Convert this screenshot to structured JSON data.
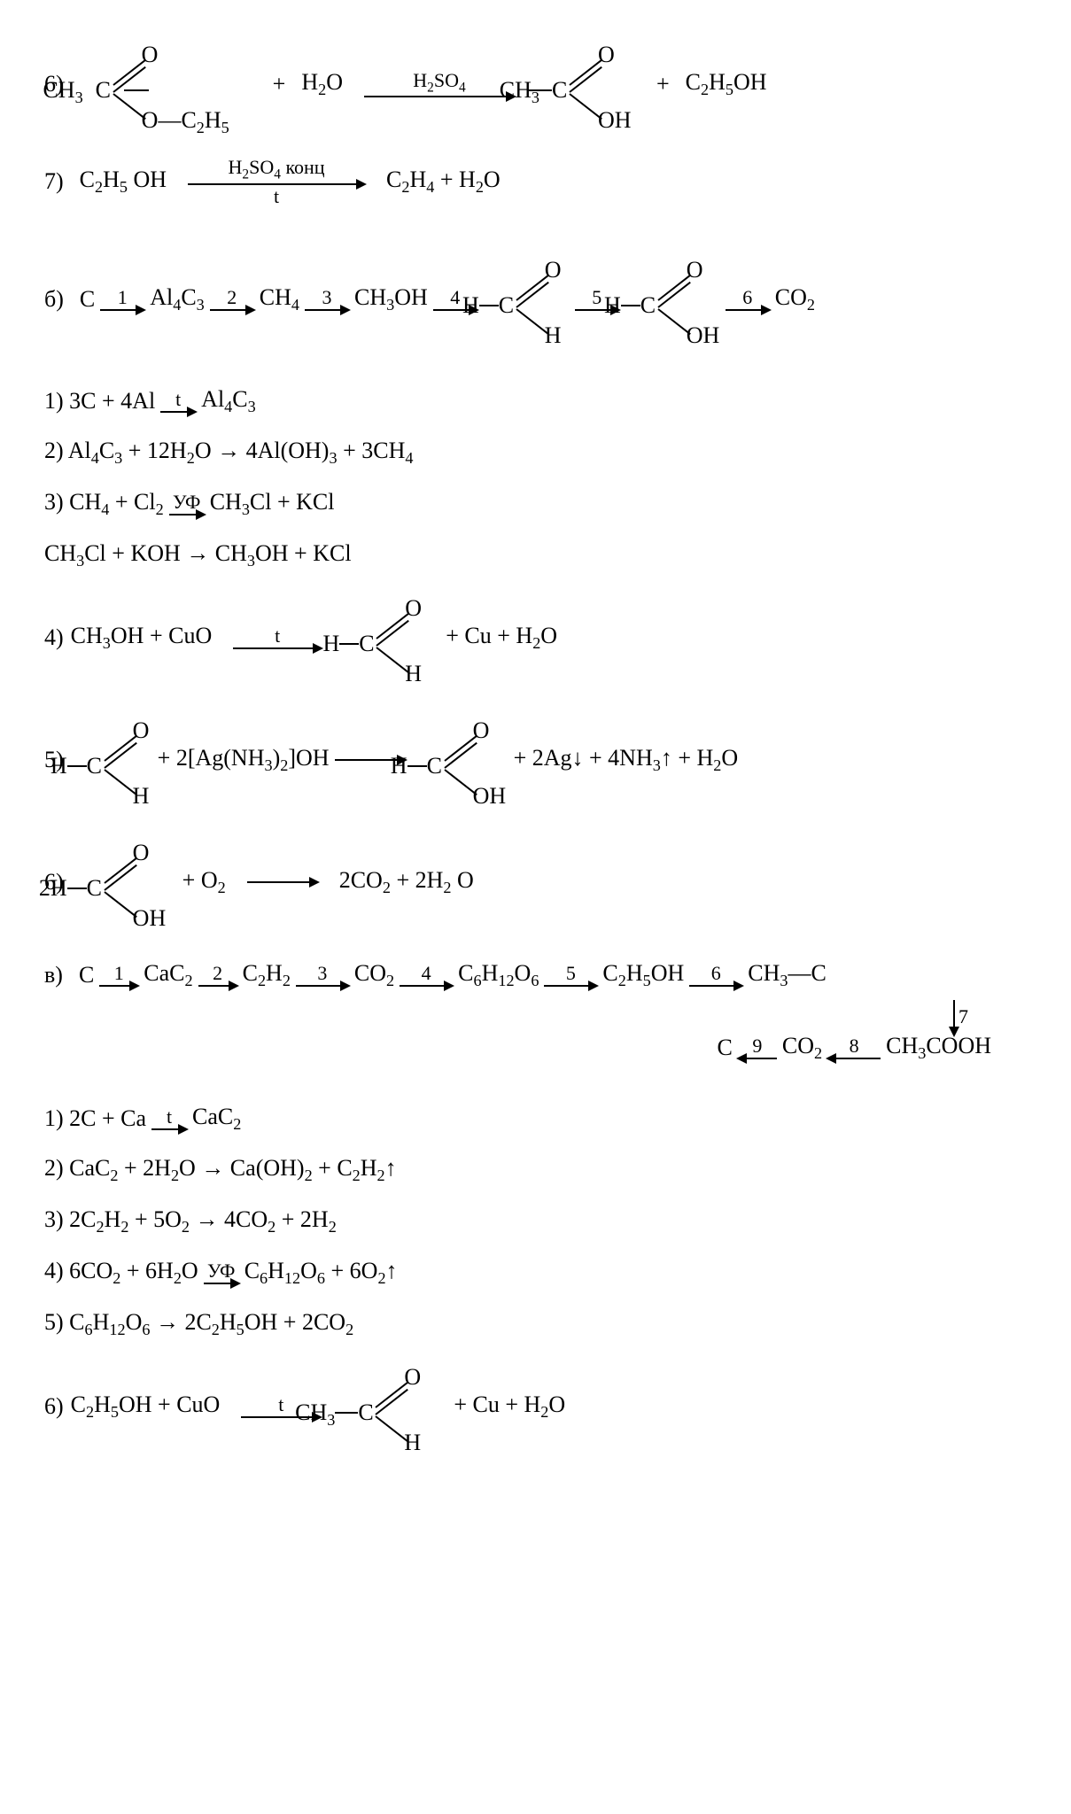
{
  "font_family": "Times New Roman",
  "colors": {
    "text": "#000000",
    "background": "#ffffff"
  },
  "eqA6": {
    "num": "6)",
    "lhs_pre": "CH<sub>3</sub>",
    "lhs_grp": {
      "C": "C",
      "O_up": "O",
      "down": "O—C<sub>2</sub>H<sub>5</sub>"
    },
    "plus1": "+",
    "h2o": "H<sub>2</sub>O",
    "arrow_above": "H<sub>2</sub>SO<sub>4</sub>",
    "arrow_len": 170,
    "rhs_pre": "CH<sub>3</sub>",
    "rhs_grp": {
      "C": "C",
      "O_up": "O",
      "down": "OH"
    },
    "plus2": "+",
    "prod2": "C<sub>2</sub>H<sub>5</sub>OH"
  },
  "eqA7": {
    "num": "7)",
    "lhs": "C<sub>2</sub>H<sub>5</sub> OH",
    "arrow_above": "H<sub>2</sub>SO<sub>4</sub> конц",
    "arrow_below": "t",
    "arrow_len": 200,
    "rhs": "C<sub>2</sub>H<sub>4</sub> + H<sub>2</sub>O"
  },
  "schemeB": {
    "label": "б)",
    "n0": "C",
    "a1_len": 50,
    "a1_lbl": "1",
    "n1": "Al<sub>4</sub>C<sub>3</sub>",
    "a2_len": 50,
    "a2_lbl": "2",
    "n2": "CH<sub>4</sub>",
    "a3_len": 50,
    "a3_lbl": "3",
    "n3": "CH<sub>3</sub>OH",
    "a4_len": 50,
    "a4_lbl": "4",
    "n4_pre": "H",
    "n4_grp": {
      "C": "C",
      "O_up": "O",
      "down": "H"
    },
    "a5_len": 50,
    "a5_lbl": "5",
    "n5_pre": "H",
    "n5_grp": {
      "C": "C",
      "O_up": "O",
      "down": "OH"
    },
    "a6_len": 50,
    "a6_lbl": "6",
    "n6": "CO<sub>2</sub>"
  },
  "eqB1": {
    "txt": "1) 3C + 4Al",
    "arrow_above": "t",
    "arrow_len": 40,
    "rhs": "Al<sub>4</sub>C<sub>3</sub>"
  },
  "eqB2": {
    "txt": "2) Al<sub>4</sub>C<sub>3</sub> + 12H<sub>2</sub>O → 4Al(OH)<sub>3</sub> + 3CH<sub>4</sub>"
  },
  "eqB3": {
    "txt": "3) CH<sub>4</sub> + Cl<sub>2</sub>",
    "arrow_above": "УФ",
    "arrow_len": 40,
    "rhs": "CH<sub>3</sub>Cl + KCl"
  },
  "eqB3b": {
    "txt": "CH<sub>3</sub>Cl + KOH → CH<sub>3</sub>OH + KCl"
  },
  "eqB4": {
    "num": "4)",
    "lhs": "CH<sub>3</sub>OH + CuO",
    "arrow_above": "t",
    "arrow_len": 100,
    "r_pre": "H",
    "r_grp": {
      "C": "C",
      "O_up": "O",
      "down": "H"
    },
    "tail": "+  Cu  +  H<sub>2</sub>O"
  },
  "eqB5": {
    "num": "5)",
    "l_pre": "H",
    "l_grp": {
      "C": "C",
      "O_up": "O",
      "down": "H"
    },
    "mid": "+  2[Ag(NH<sub>3</sub>)<sub>2</sub>]OH",
    "arrow_len": 80,
    "r_pre": "H",
    "r_grp": {
      "C": "C",
      "O_up": "O",
      "down": "OH"
    },
    "tail": "+  2Ag↓ +  4NH<sub>3</sub>↑  +  H<sub>2</sub>O"
  },
  "eqB6": {
    "num": "6)",
    "l_pre": "2H",
    "l_grp": {
      "C": "C",
      "O_up": "O",
      "down": "OH"
    },
    "mid": "+    O<sub>2</sub>",
    "arrow_len": 80,
    "rhs": "2CO<sub>2</sub>  +  2H<sub>2</sub> O"
  },
  "schemeV": {
    "label": "в)",
    "n0": "C",
    "a1_lbl": "1",
    "a1_len": 44,
    "n1": "CaC<sub>2</sub>",
    "a2_lbl": "2",
    "a2_len": 44,
    "n2": "C<sub>2</sub>H<sub>2</sub>",
    "a3_lbl": "3",
    "a3_len": 60,
    "n3": "CO<sub>2</sub>",
    "a4_lbl": "4",
    "a4_len": 60,
    "n4": "C<sub>6</sub>H<sub>12</sub>O<sub>6</sub>",
    "a5_lbl": "5",
    "a5_len": 60,
    "n5": "C<sub>2</sub>H<sub>5</sub>OH",
    "a6_lbl": "6",
    "a6_len": 60,
    "n6": "CH<sub>3</sub>—C",
    "down_lbl": "7",
    "row2_n9": "C",
    "a9_lbl": "9",
    "a9_len": 44,
    "row2_n8": "CO<sub>2</sub>",
    "a8_lbl": "8",
    "a8_len": 60,
    "row2_n7": "CH<sub>3</sub>COOH"
  },
  "eqV1": {
    "txt": "1) 2C + Ca",
    "arrow_above": "t",
    "arrow_len": 40,
    "rhs": "CaC<sub>2</sub>"
  },
  "eqV2": {
    "txt": "2) CaC<sub>2</sub> + 2H<sub>2</sub>O → Ca(OH)<sub>2</sub> + C<sub>2</sub>H<sub>2</sub>↑"
  },
  "eqV3": {
    "txt": "3) 2C<sub>2</sub>H<sub>2</sub> + 5O<sub>2</sub> → 4CO<sub>2</sub> + 2H<sub>2</sub>"
  },
  "eqV4": {
    "txt": "4) 6CO<sub>2</sub> + 6H<sub>2</sub>O",
    "arrow_above": "УФ",
    "arrow_len": 40,
    "rhs": "C<sub>6</sub>H<sub>12</sub>O<sub>6</sub> + 6O<sub>2</sub>↑"
  },
  "eqV5": {
    "txt": "5) C<sub>6</sub>H<sub>12</sub>O<sub>6</sub> → 2C<sub>2</sub>H<sub>5</sub>OH + 2CO<sub>2</sub>"
  },
  "eqV6": {
    "num": "6)",
    "lhs": "C<sub>2</sub>H<sub>5</sub>OH + CuO",
    "arrow_above": "t",
    "arrow_len": 90,
    "r_pre": "CH<sub>3</sub>",
    "r_grp": {
      "C": "C",
      "O_up": "O",
      "down": "H"
    },
    "tail": "+  Cu  + H<sub>2</sub>O"
  }
}
